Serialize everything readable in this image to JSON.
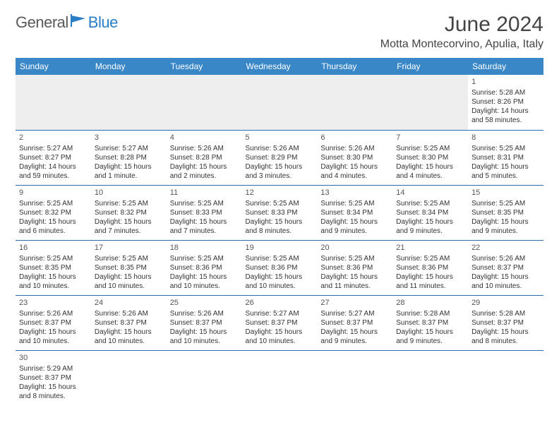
{
  "logo": {
    "part1": "General",
    "part2": "Blue"
  },
  "title": "June 2024",
  "location": "Motta Montecorvino, Apulia, Italy",
  "header_bg": "#3a87c8",
  "header_fg": "#ffffff",
  "border_color": "#2a6db0",
  "empty_bg": "#eeeeee",
  "days": [
    "Sunday",
    "Monday",
    "Tuesday",
    "Wednesday",
    "Thursday",
    "Friday",
    "Saturday"
  ],
  "weeks": [
    [
      null,
      null,
      null,
      null,
      null,
      null,
      {
        "n": "1",
        "sr": "Sunrise: 5:28 AM",
        "ss": "Sunset: 8:26 PM",
        "dl": "Daylight: 14 hours and 58 minutes."
      }
    ],
    [
      {
        "n": "2",
        "sr": "Sunrise: 5:27 AM",
        "ss": "Sunset: 8:27 PM",
        "dl": "Daylight: 14 hours and 59 minutes."
      },
      {
        "n": "3",
        "sr": "Sunrise: 5:27 AM",
        "ss": "Sunset: 8:28 PM",
        "dl": "Daylight: 15 hours and 1 minute."
      },
      {
        "n": "4",
        "sr": "Sunrise: 5:26 AM",
        "ss": "Sunset: 8:28 PM",
        "dl": "Daylight: 15 hours and 2 minutes."
      },
      {
        "n": "5",
        "sr": "Sunrise: 5:26 AM",
        "ss": "Sunset: 8:29 PM",
        "dl": "Daylight: 15 hours and 3 minutes."
      },
      {
        "n": "6",
        "sr": "Sunrise: 5:26 AM",
        "ss": "Sunset: 8:30 PM",
        "dl": "Daylight: 15 hours and 4 minutes."
      },
      {
        "n": "7",
        "sr": "Sunrise: 5:25 AM",
        "ss": "Sunset: 8:30 PM",
        "dl": "Daylight: 15 hours and 4 minutes."
      },
      {
        "n": "8",
        "sr": "Sunrise: 5:25 AM",
        "ss": "Sunset: 8:31 PM",
        "dl": "Daylight: 15 hours and 5 minutes."
      }
    ],
    [
      {
        "n": "9",
        "sr": "Sunrise: 5:25 AM",
        "ss": "Sunset: 8:32 PM",
        "dl": "Daylight: 15 hours and 6 minutes."
      },
      {
        "n": "10",
        "sr": "Sunrise: 5:25 AM",
        "ss": "Sunset: 8:32 PM",
        "dl": "Daylight: 15 hours and 7 minutes."
      },
      {
        "n": "11",
        "sr": "Sunrise: 5:25 AM",
        "ss": "Sunset: 8:33 PM",
        "dl": "Daylight: 15 hours and 7 minutes."
      },
      {
        "n": "12",
        "sr": "Sunrise: 5:25 AM",
        "ss": "Sunset: 8:33 PM",
        "dl": "Daylight: 15 hours and 8 minutes."
      },
      {
        "n": "13",
        "sr": "Sunrise: 5:25 AM",
        "ss": "Sunset: 8:34 PM",
        "dl": "Daylight: 15 hours and 9 minutes."
      },
      {
        "n": "14",
        "sr": "Sunrise: 5:25 AM",
        "ss": "Sunset: 8:34 PM",
        "dl": "Daylight: 15 hours and 9 minutes."
      },
      {
        "n": "15",
        "sr": "Sunrise: 5:25 AM",
        "ss": "Sunset: 8:35 PM",
        "dl": "Daylight: 15 hours and 9 minutes."
      }
    ],
    [
      {
        "n": "16",
        "sr": "Sunrise: 5:25 AM",
        "ss": "Sunset: 8:35 PM",
        "dl": "Daylight: 15 hours and 10 minutes."
      },
      {
        "n": "17",
        "sr": "Sunrise: 5:25 AM",
        "ss": "Sunset: 8:35 PM",
        "dl": "Daylight: 15 hours and 10 minutes."
      },
      {
        "n": "18",
        "sr": "Sunrise: 5:25 AM",
        "ss": "Sunset: 8:36 PM",
        "dl": "Daylight: 15 hours and 10 minutes."
      },
      {
        "n": "19",
        "sr": "Sunrise: 5:25 AM",
        "ss": "Sunset: 8:36 PM",
        "dl": "Daylight: 15 hours and 10 minutes."
      },
      {
        "n": "20",
        "sr": "Sunrise: 5:25 AM",
        "ss": "Sunset: 8:36 PM",
        "dl": "Daylight: 15 hours and 11 minutes."
      },
      {
        "n": "21",
        "sr": "Sunrise: 5:25 AM",
        "ss": "Sunset: 8:36 PM",
        "dl": "Daylight: 15 hours and 11 minutes."
      },
      {
        "n": "22",
        "sr": "Sunrise: 5:26 AM",
        "ss": "Sunset: 8:37 PM",
        "dl": "Daylight: 15 hours and 10 minutes."
      }
    ],
    [
      {
        "n": "23",
        "sr": "Sunrise: 5:26 AM",
        "ss": "Sunset: 8:37 PM",
        "dl": "Daylight: 15 hours and 10 minutes."
      },
      {
        "n": "24",
        "sr": "Sunrise: 5:26 AM",
        "ss": "Sunset: 8:37 PM",
        "dl": "Daylight: 15 hours and 10 minutes."
      },
      {
        "n": "25",
        "sr": "Sunrise: 5:26 AM",
        "ss": "Sunset: 8:37 PM",
        "dl": "Daylight: 15 hours and 10 minutes."
      },
      {
        "n": "26",
        "sr": "Sunrise: 5:27 AM",
        "ss": "Sunset: 8:37 PM",
        "dl": "Daylight: 15 hours and 10 minutes."
      },
      {
        "n": "27",
        "sr": "Sunrise: 5:27 AM",
        "ss": "Sunset: 8:37 PM",
        "dl": "Daylight: 15 hours and 9 minutes."
      },
      {
        "n": "28",
        "sr": "Sunrise: 5:28 AM",
        "ss": "Sunset: 8:37 PM",
        "dl": "Daylight: 15 hours and 9 minutes."
      },
      {
        "n": "29",
        "sr": "Sunrise: 5:28 AM",
        "ss": "Sunset: 8:37 PM",
        "dl": "Daylight: 15 hours and 8 minutes."
      }
    ],
    [
      {
        "n": "30",
        "sr": "Sunrise: 5:29 AM",
        "ss": "Sunset: 8:37 PM",
        "dl": "Daylight: 15 hours and 8 minutes."
      },
      null,
      null,
      null,
      null,
      null,
      null
    ]
  ]
}
